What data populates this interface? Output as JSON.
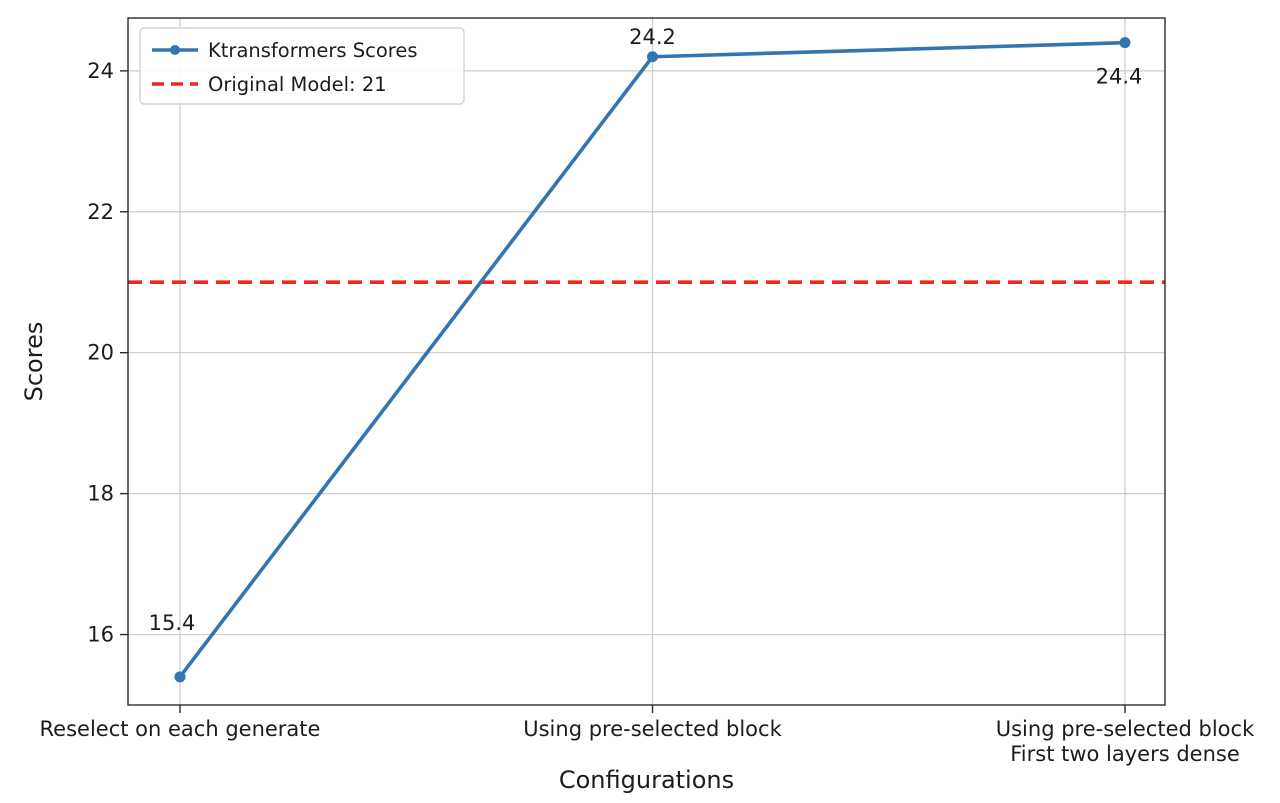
{
  "chart_data": {
    "type": "line",
    "title": "",
    "xlabel": "Configurations",
    "ylabel": "Scores",
    "categories": [
      "Reselect on each generate",
      "Using pre-selected block",
      "Using pre-selected block\nFirst two layers dense"
    ],
    "series": [
      {
        "name": "Ktransformers Scores",
        "values": [
          15.4,
          24.2,
          24.4
        ],
        "color": "#3375b2",
        "marker": "circle",
        "line_style": "solid"
      }
    ],
    "reference_line": {
      "label": "Original Model: 21",
      "value": 21,
      "color": "#e8291f",
      "line_style": "dashed"
    },
    "point_labels": [
      "15.4",
      "24.2",
      "24.4"
    ],
    "yticks": [
      16,
      18,
      20,
      22,
      24
    ],
    "ylim": [
      15.0,
      24.75
    ],
    "grid": true,
    "legend_position": "top-left",
    "colors": {
      "grid": "#cccccc",
      "spine": "#2b2b2b",
      "text": "#1c1c1c",
      "background": "#ffffff",
      "legend_border": "#cccccc"
    }
  }
}
